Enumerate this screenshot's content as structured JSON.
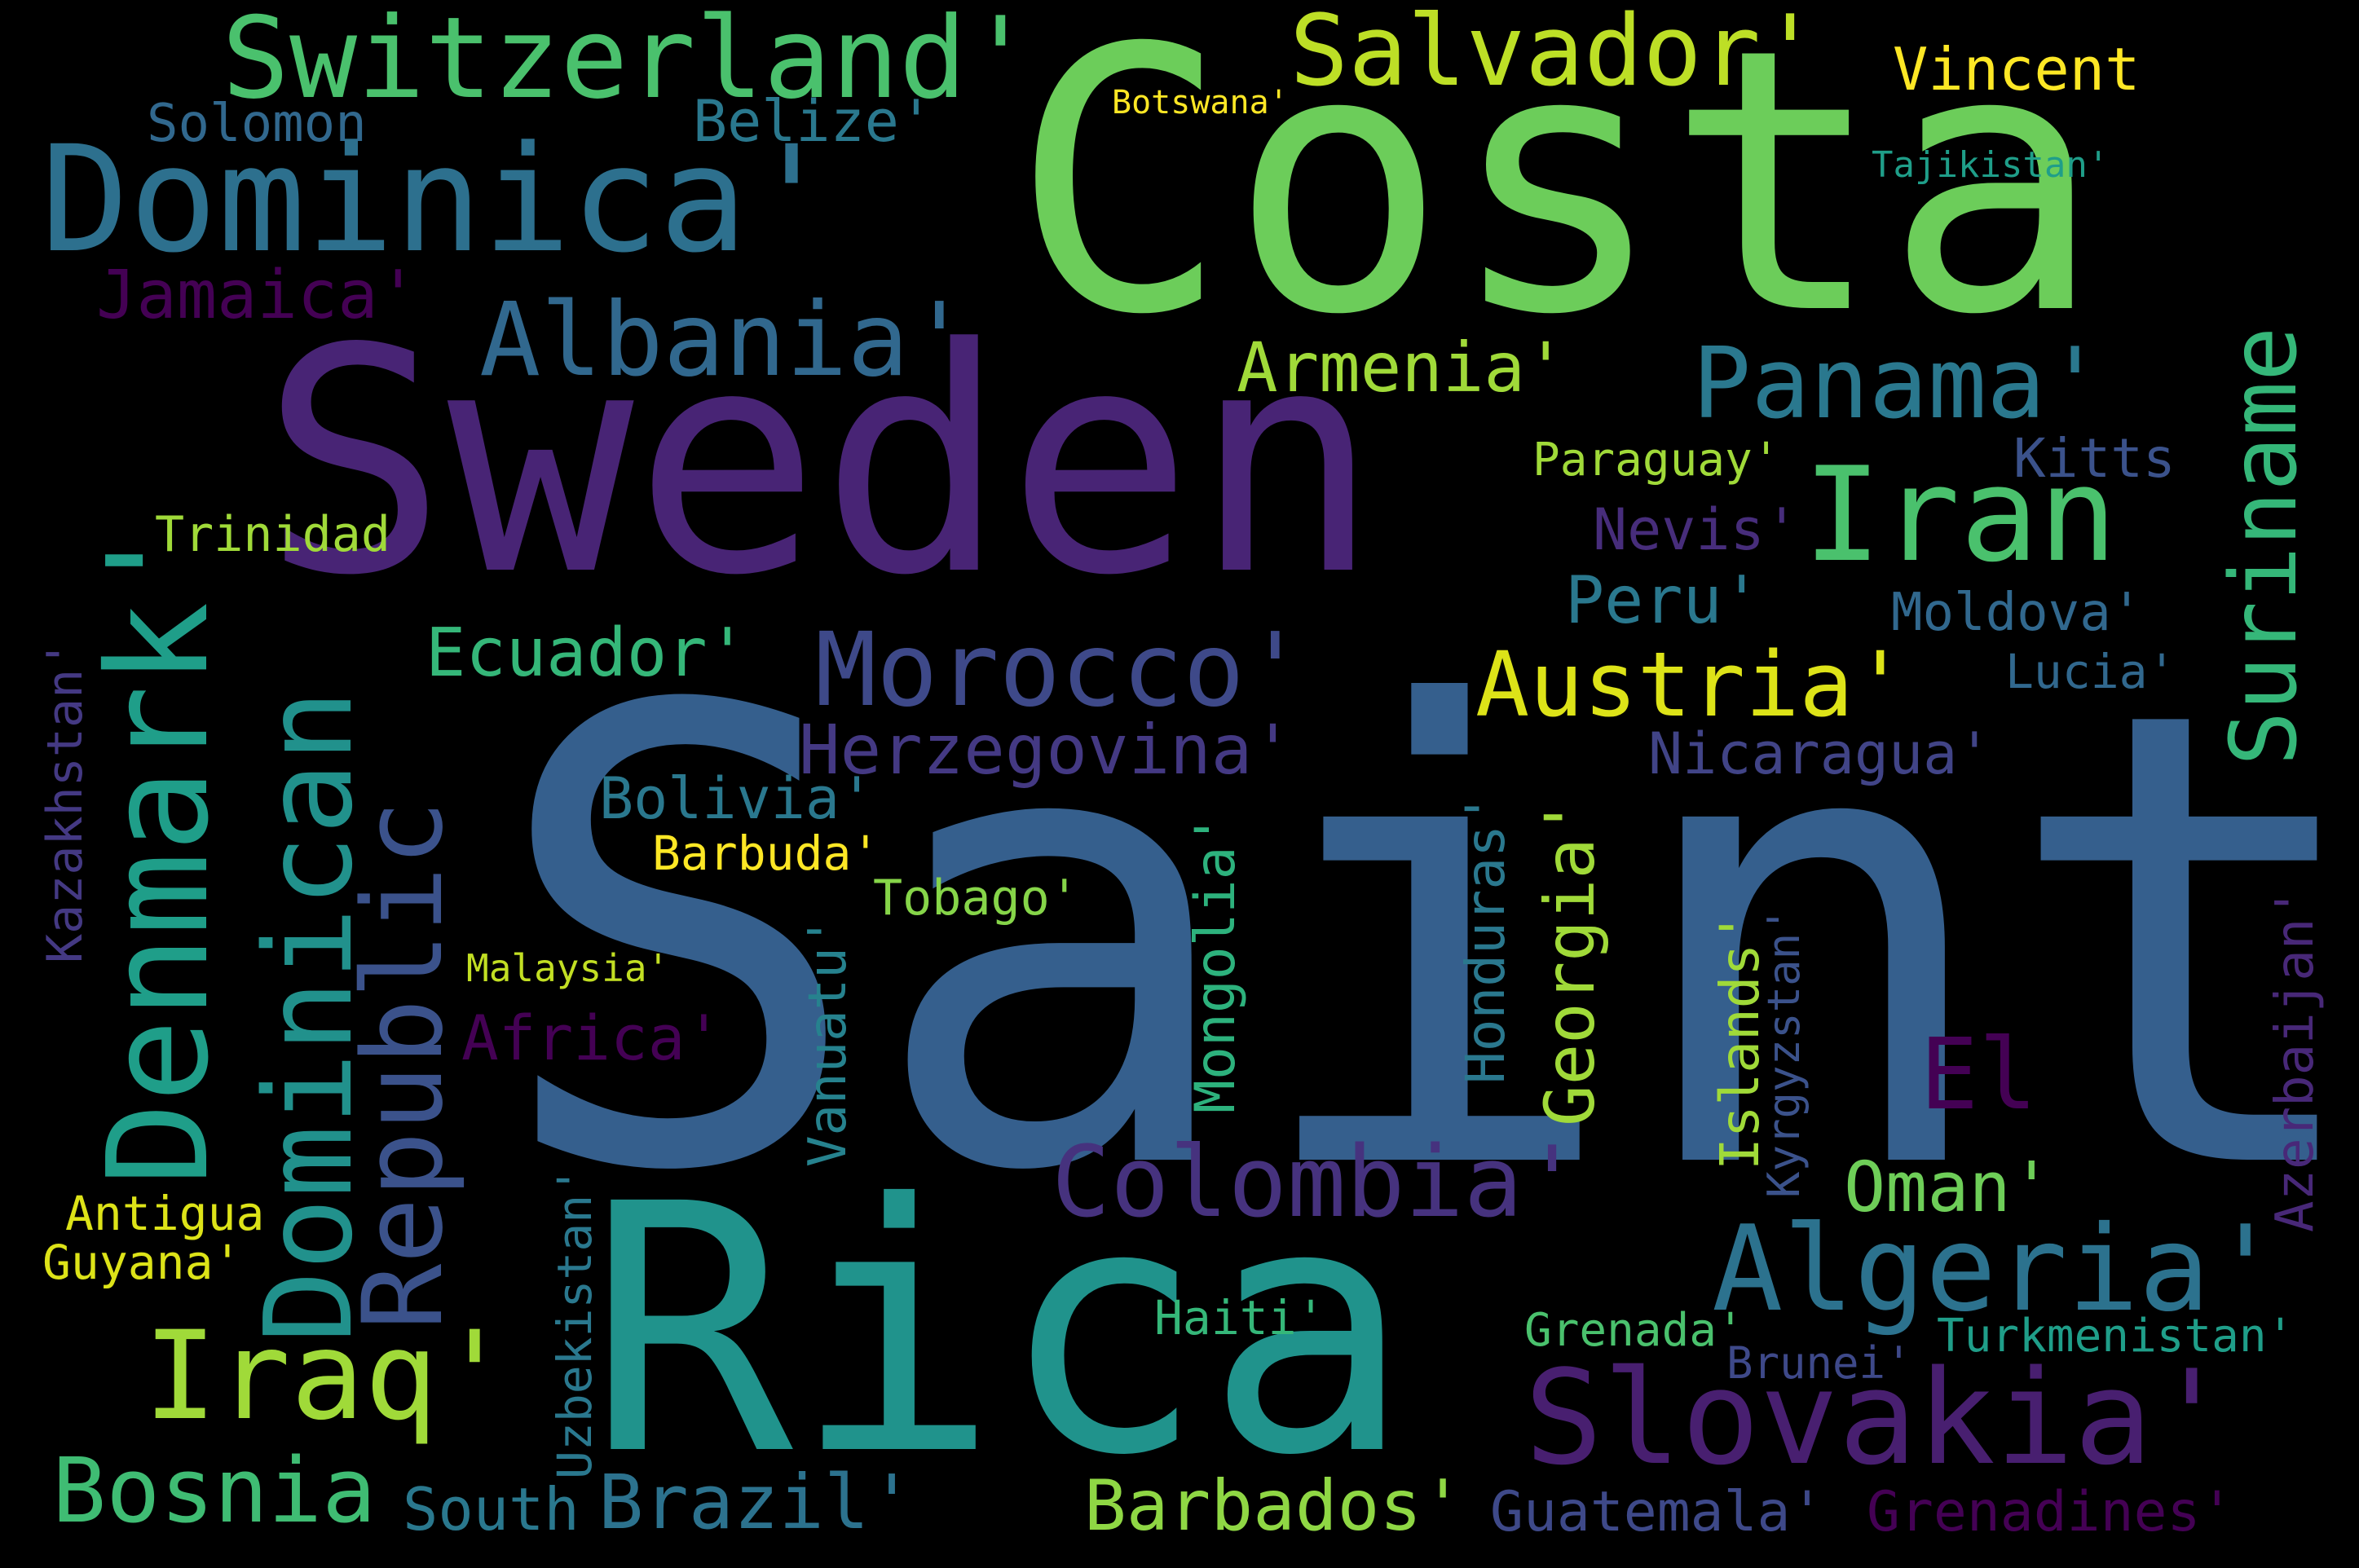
{
  "words": [
    {
      "text": "Saint",
      "color": "#355f8d"
    },
    {
      "text": "Costa",
      "color": "#6ccd5a"
    },
    {
      "text": "Sweden",
      "color": "#482475"
    },
    {
      "text": "Rica",
      "color": "#20938c"
    },
    {
      "text": "Denmark'",
      "color": "#1f9e89"
    },
    {
      "text": "Dominica'",
      "color": "#2d708e"
    },
    {
      "text": "Switzerland'",
      "color": "#4ac16d"
    },
    {
      "text": "Salvador'",
      "color": "#bddf26"
    },
    {
      "text": "Vincent",
      "color": "#fde725"
    },
    {
      "text": "Solomon",
      "color": "#31688e"
    },
    {
      "text": "Belize'",
      "color": "#2a788e"
    },
    {
      "text": "Botswana'",
      "color": "#fde725"
    },
    {
      "text": "Tajikistan'",
      "color": "#1f9e89"
    },
    {
      "text": "Suriname",
      "color": "#35b779"
    },
    {
      "text": "Jamaica'",
      "color": "#440154"
    },
    {
      "text": "Albania'",
      "color": "#31688e"
    },
    {
      "text": "Armenia'",
      "color": "#a0da39"
    },
    {
      "text": "Panama'",
      "color": "#2a788e"
    },
    {
      "text": "Iran",
      "color": "#4ac16d"
    },
    {
      "text": "Kitts",
      "color": "#3b528b"
    },
    {
      "text": "Paraguay'",
      "color": "#a0da39"
    },
    {
      "text": "Nevis'",
      "color": "#472d7b"
    },
    {
      "text": "Trinidad",
      "color": "#a0da39"
    },
    {
      "text": "Peru'",
      "color": "#2a788e"
    },
    {
      "text": "Moldova'",
      "color": "#31688e"
    },
    {
      "text": "Kazakhstan'",
      "color": "#443983"
    },
    {
      "text": "Dominican",
      "color": "#21918c"
    },
    {
      "text": "Republic",
      "color": "#3b528b"
    },
    {
      "text": "Ecuador'",
      "color": "#35b779"
    },
    {
      "text": "Morocco'",
      "color": "#3e4989"
    },
    {
      "text": "Austria'",
      "color": "#dde318"
    },
    {
      "text": "Lucia'",
      "color": "#31688e"
    },
    {
      "text": "Herzegovina'",
      "color": "#443983"
    },
    {
      "text": "Nicaragua'",
      "color": "#414487"
    },
    {
      "text": "Bolivia'",
      "color": "#2a788e"
    },
    {
      "text": "Barbuda'",
      "color": "#fde725"
    },
    {
      "text": "Tobago'",
      "color": "#86d549"
    },
    {
      "text": "Honduras'",
      "color": "#2a788e"
    },
    {
      "text": "Georgia'",
      "color": "#a0da39"
    },
    {
      "text": "Azerbaijan'",
      "color": "#482878"
    },
    {
      "text": "Mongolia'",
      "color": "#2db27d"
    },
    {
      "text": "Vanuatu'",
      "color": "#26828e"
    },
    {
      "text": "Malaysia'",
      "color": "#c2df23"
    },
    {
      "text": "Africa'",
      "color": "#440154"
    },
    {
      "text": "El",
      "color": "#440154"
    },
    {
      "text": "Islands'",
      "color": "#a0da39"
    },
    {
      "text": "Kyrgyzstan'",
      "color": "#3b528b"
    },
    {
      "text": "Colombia'",
      "color": "#46327e"
    },
    {
      "text": "Oman'",
      "color": "#6ece58"
    },
    {
      "text": "Algeria'",
      "color": "#2c728e"
    },
    {
      "text": "Antigua",
      "color": "#dde318"
    },
    {
      "text": "Guyana'",
      "color": "#dde318"
    },
    {
      "text": "Uzbekistan'",
      "color": "#2a788e"
    },
    {
      "text": "Iraq'",
      "color": "#a0da39"
    },
    {
      "text": "Haiti'",
      "color": "#35b779"
    },
    {
      "text": "Grenada'",
      "color": "#4ac16d"
    },
    {
      "text": "Turkmenistan'",
      "color": "#1f9e89"
    },
    {
      "text": "Brunei'",
      "color": "#3e4989"
    },
    {
      "text": "Slovakia'",
      "color": "#481f70"
    },
    {
      "text": "Bosnia",
      "color": "#3fbc73"
    },
    {
      "text": "South",
      "color": "#2a788e"
    },
    {
      "text": "Brazil'",
      "color": "#2c728e"
    },
    {
      "text": "Barbados'",
      "color": "#8fd744"
    },
    {
      "text": "Guatemala'",
      "color": "#3e4989"
    },
    {
      "text": "Grenadines'",
      "color": "#440154"
    }
  ]
}
